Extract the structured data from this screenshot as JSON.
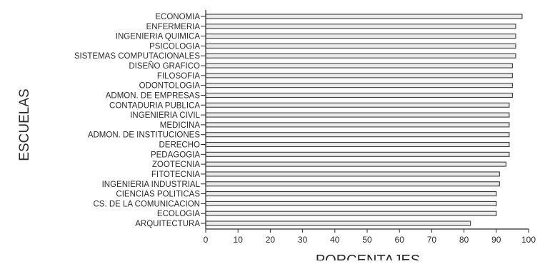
{
  "chart_data": {
    "type": "bar",
    "orientation": "horizontal",
    "title": "",
    "xlabel": "PORCENTAJES",
    "ylabel": "ESCUELAS",
    "xlim": [
      0,
      100
    ],
    "x_ticks": [
      "0",
      "10",
      "20",
      "30",
      "40",
      "50",
      "60",
      "70",
      "80",
      "90",
      "100"
    ],
    "categories": [
      "ECONOMIA",
      "ENFERMERIA",
      "INGENIERIA QUIMICA",
      "PSICOLOGIA",
      "SISTEMAS COMPUTACIONALES",
      "DISEÑO GRAFICO",
      "FILOSOFIA",
      "ODONTOLOGIA",
      "ADMON. DE EMPRESAS",
      "CONTADURIA PUBLICA",
      "INGENIERIA CIVIL",
      "MEDICINA",
      "ADMON. DE INSTITUCIONES",
      "DERECHO",
      "PEDAGOGIA",
      "ZOOTECNIA",
      "FITOTECNIA",
      "INGENIERIA INDUSTRIAL",
      "CIENCIAS POLITICAS",
      "CS. DE LA COMUNICACION",
      "ECOLOGIA",
      "ARQUITECTURA"
    ],
    "values": [
      98,
      96,
      96,
      96,
      96,
      95,
      95,
      95,
      95,
      94,
      94,
      94,
      94,
      94,
      94,
      93,
      91,
      91,
      90,
      90,
      90,
      82
    ],
    "grid": false,
    "legend": "none",
    "colors": {
      "bar_fill": "#ebebeb",
      "bar_edge": "#3a3a3a",
      "axis": "#2a2a2a",
      "text": "#2a2a2a"
    }
  }
}
